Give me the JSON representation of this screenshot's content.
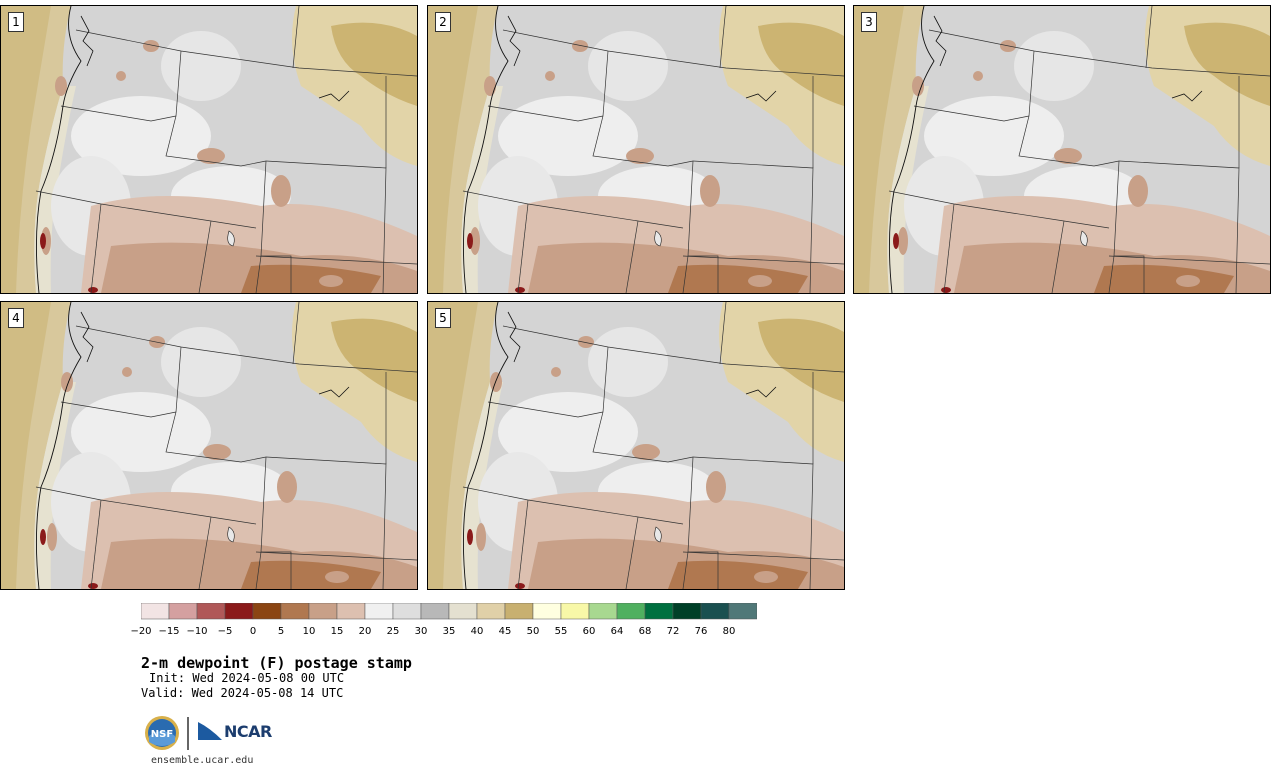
{
  "panels": [
    {
      "label": "1"
    },
    {
      "label": "2"
    },
    {
      "label": "3"
    },
    {
      "label": "4"
    },
    {
      "label": "5"
    }
  ],
  "colorbar": {
    "colors": [
      "#f2e4e4",
      "#d4a0a0",
      "#b05858",
      "#8b1a1a",
      "#8b4513",
      "#b07850",
      "#c8a088",
      "#ddc0b0",
      "#f0f0f0",
      "#dedede",
      "#b8b8b8",
      "#e4e0d0",
      "#e0d0a8",
      "#c8b070",
      "#ffffe0",
      "#f8f8a8",
      "#a8d890",
      "#50b060",
      "#007040",
      "#004028",
      "#1a5050",
      "#507878"
    ],
    "ticks": [
      "−20",
      "−15",
      "−10",
      "−5",
      "0",
      "5",
      "10",
      "15",
      "20",
      "25",
      "30",
      "35",
      "40",
      "45",
      "50",
      "55",
      "60",
      "64",
      "68",
      "72",
      "76",
      "80"
    ]
  },
  "title": "2-m dewpoint (F) postage stamp",
  "init": "Init: Wed 2024-05-08 00 UTC",
  "valid": "Valid: Wed 2024-05-08 14 UTC",
  "logo": {
    "nsf": "NSF",
    "ncar": "NCAR"
  },
  "url": "ensemble.ucar.edu"
}
